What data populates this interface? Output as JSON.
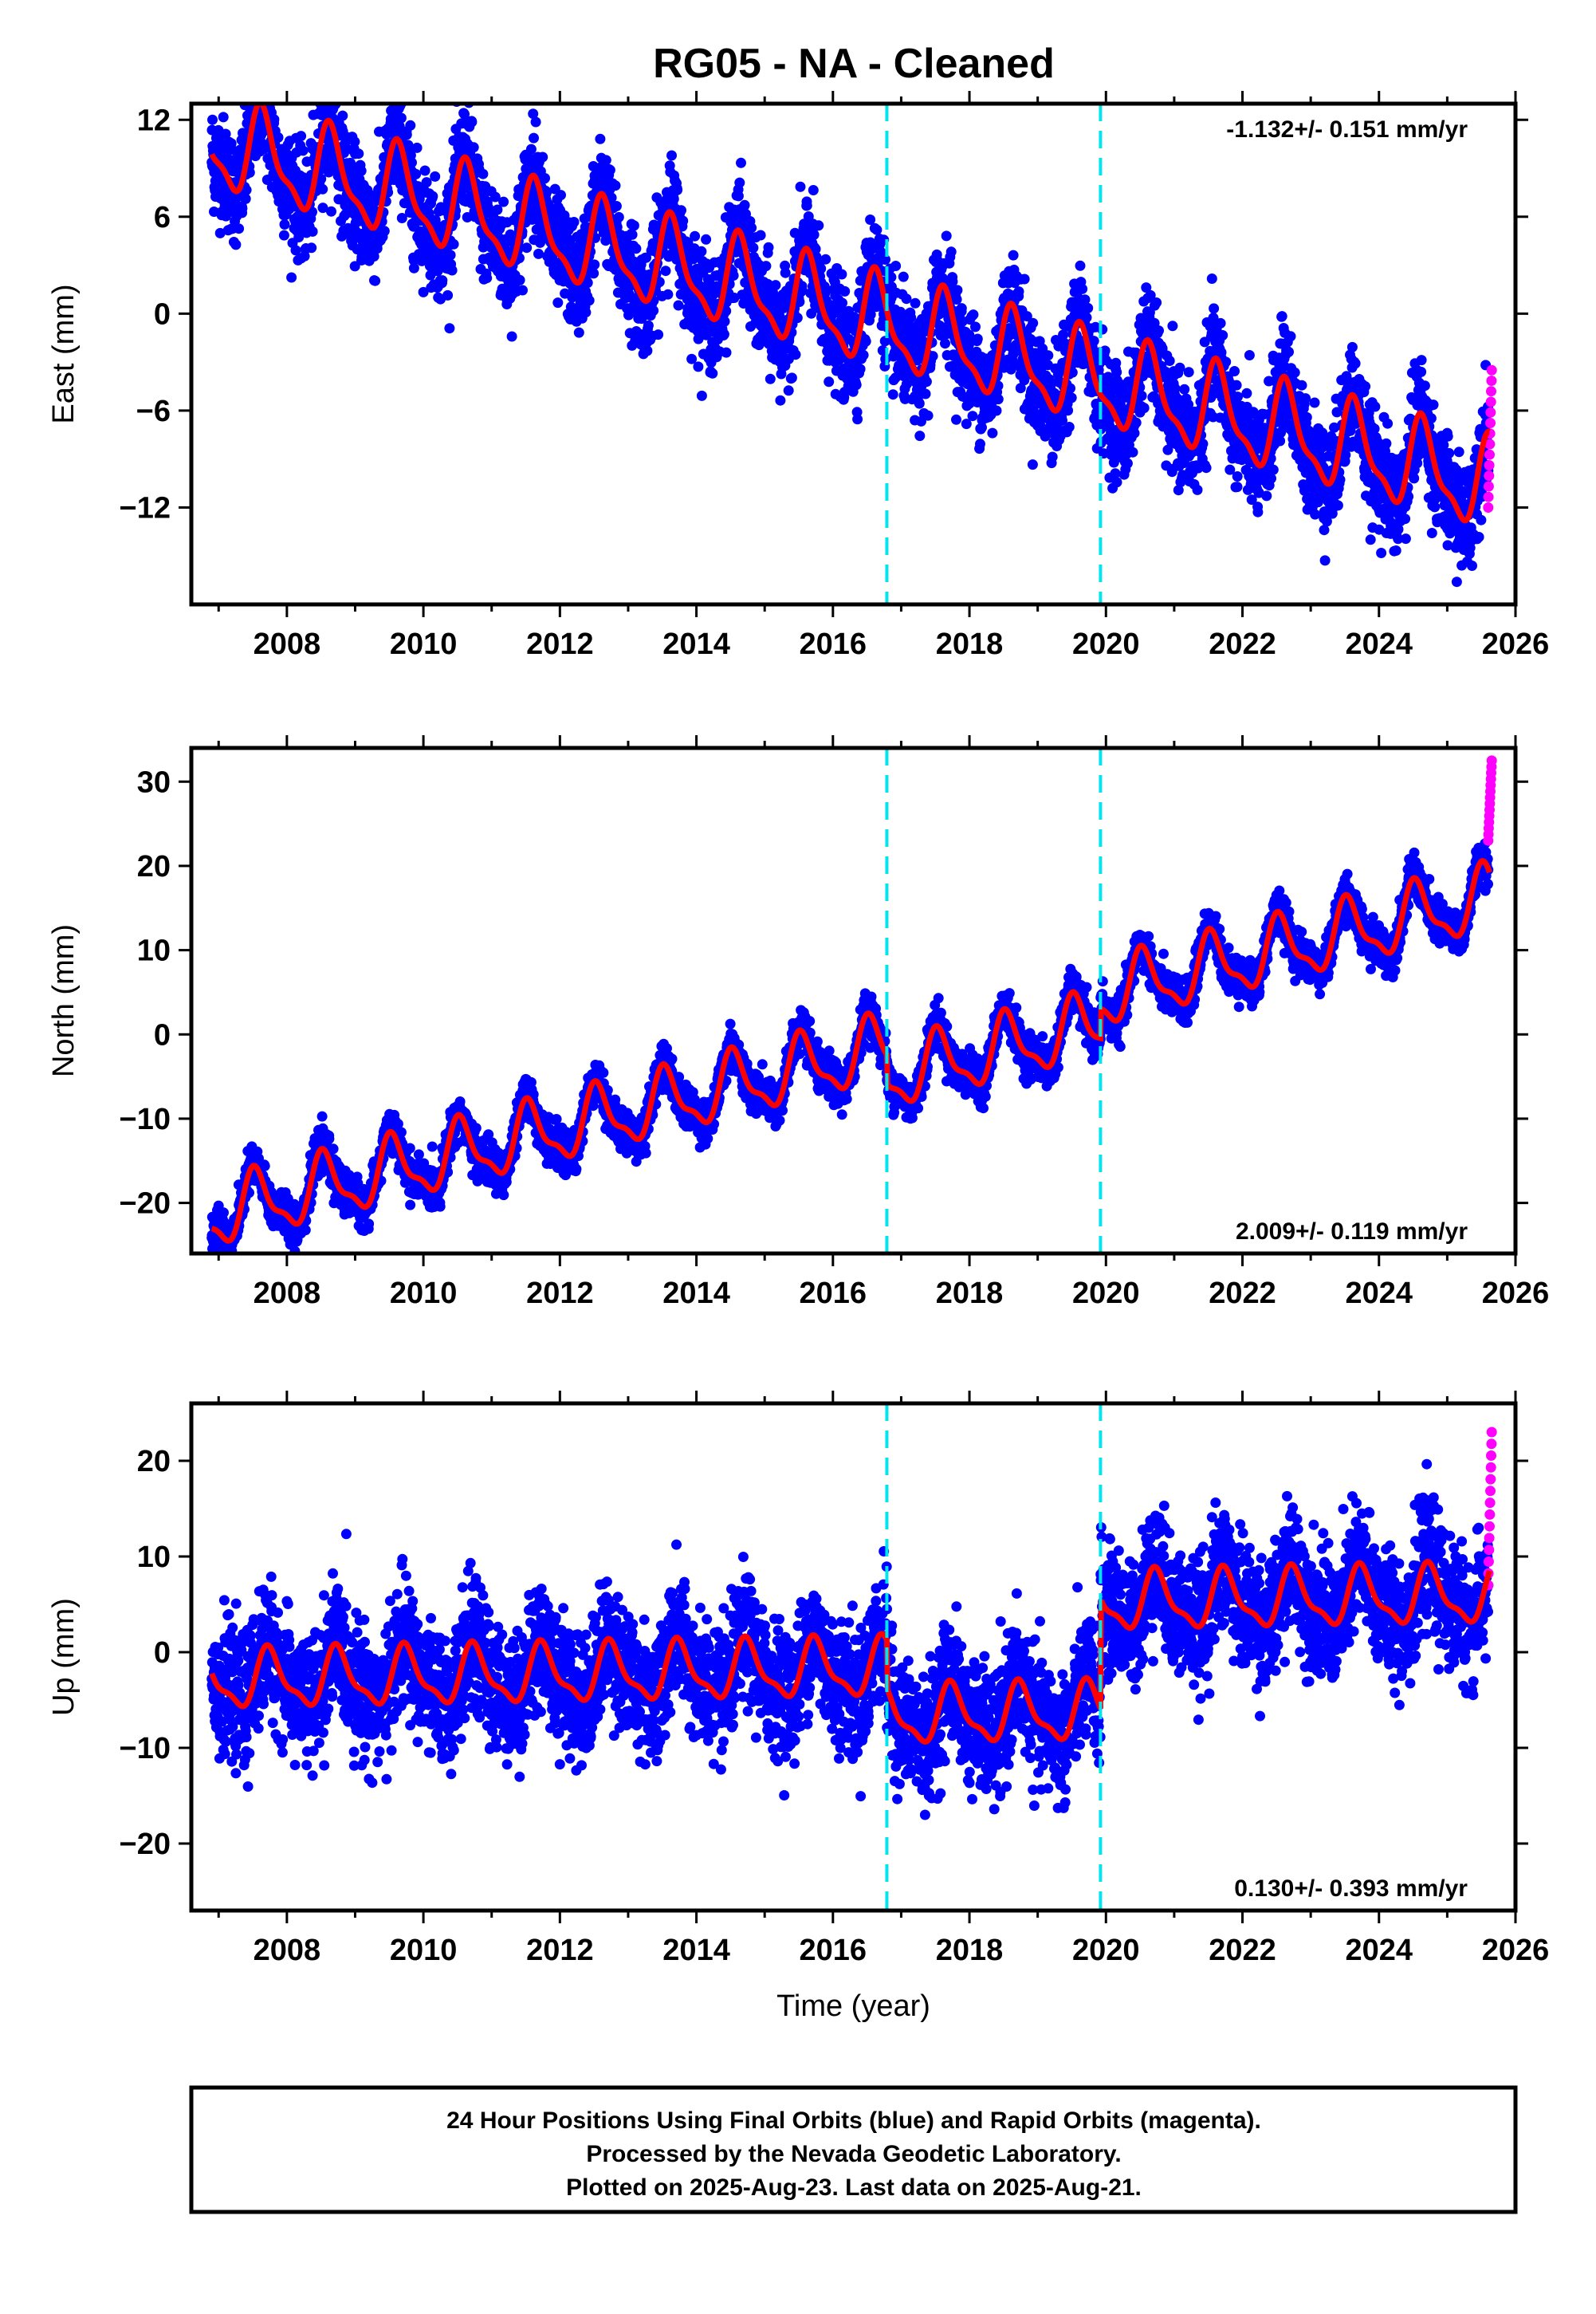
{
  "title": "RG05  - NA - Cleaned",
  "caption": {
    "line1": "24 Hour Positions Using Final Orbits (blue) and Rapid Orbits (magenta).",
    "line2": "Processed by the Nevada Geodetic Laboratory.",
    "line3": "Plotted on 2025-Aug-23. Last data on 2025-Aug-21."
  },
  "colors": {
    "final": "#0000ff",
    "rapid": "#ff00ff",
    "model": "#ff0000",
    "event": "#00e5ee"
  },
  "chart_data": [
    {
      "type": "scatter",
      "ylabel": "East (mm)",
      "xlabel": "",
      "xlim": [
        2006.6,
        2026.0
      ],
      "ylim": [
        -18,
        13
      ],
      "xticks": [
        2008,
        2010,
        2012,
        2014,
        2016,
        2018,
        2020,
        2022,
        2024,
        2026
      ],
      "yticks": [
        -12,
        -6,
        0,
        6,
        12
      ],
      "rate_label": "-1.132+/- 0.151 mm/yr",
      "rate_position": "top-right",
      "event_lines": [
        2016.79,
        2019.92
      ],
      "model": {
        "start": 2006.9,
        "end": 2025.62,
        "offset_at_start": 10.5,
        "slope": -1.132,
        "annual_amplitude": 2.6,
        "annual_peak_phase": 0.65,
        "steps": []
      },
      "scatter_scatter_mm": 1.6,
      "rapid_range": [
        -12,
        -3.5
      ],
      "grid": false
    },
    {
      "type": "scatter",
      "ylabel": "North (mm)",
      "xlabel": "",
      "xlim": [
        2006.6,
        2026.0
      ],
      "ylim": [
        -26,
        34
      ],
      "xticks": [
        2008,
        2010,
        2012,
        2014,
        2016,
        2018,
        2020,
        2022,
        2024,
        2026
      ],
      "yticks": [
        -20,
        -10,
        0,
        10,
        20,
        30
      ],
      "rate_label": "2.009+/- 0.119 mm/yr",
      "rate_position": "bottom-right",
      "event_lines": [
        2016.79,
        2019.92
      ],
      "model": {
        "start": 2006.9,
        "end": 2025.62,
        "offset_at_start": -21.5,
        "slope": 2.009,
        "annual_amplitude": 3.6,
        "annual_peak_phase": 0.55,
        "steps": [
          {
            "t": 2016.79,
            "dy": -3.5
          },
          {
            "t": 2019.92,
            "dy": 3.5
          }
        ]
      },
      "scatter_scatter_mm": 1.2,
      "rapid_range": [
        23,
        32.5
      ],
      "grid": false
    },
    {
      "type": "scatter",
      "ylabel": "Up (mm)",
      "xlabel": "Time (year)",
      "xlim": [
        2006.6,
        2026.0
      ],
      "ylim": [
        -27,
        26
      ],
      "xticks": [
        2008,
        2010,
        2012,
        2014,
        2016,
        2018,
        2020,
        2022,
        2024,
        2026
      ],
      "yticks": [
        -20,
        -10,
        0,
        10,
        20
      ],
      "rate_label": "0.130+/- 0.393 mm/yr",
      "rate_position": "bottom-right",
      "event_lines": [
        2016.79,
        2019.92
      ],
      "model": {
        "start": 2006.9,
        "end": 2025.62,
        "offset_at_start": -3.0,
        "slope": 0.13,
        "annual_amplitude": 2.8,
        "annual_peak_phase": 0.75,
        "steps": [
          {
            "t": 2016.79,
            "dy": -5.0
          },
          {
            "t": 2019.92,
            "dy": 11.5
          }
        ]
      },
      "scatter_scatter_mm": 3.2,
      "rapid_range": [
        7,
        23
      ],
      "grid": false
    }
  ]
}
